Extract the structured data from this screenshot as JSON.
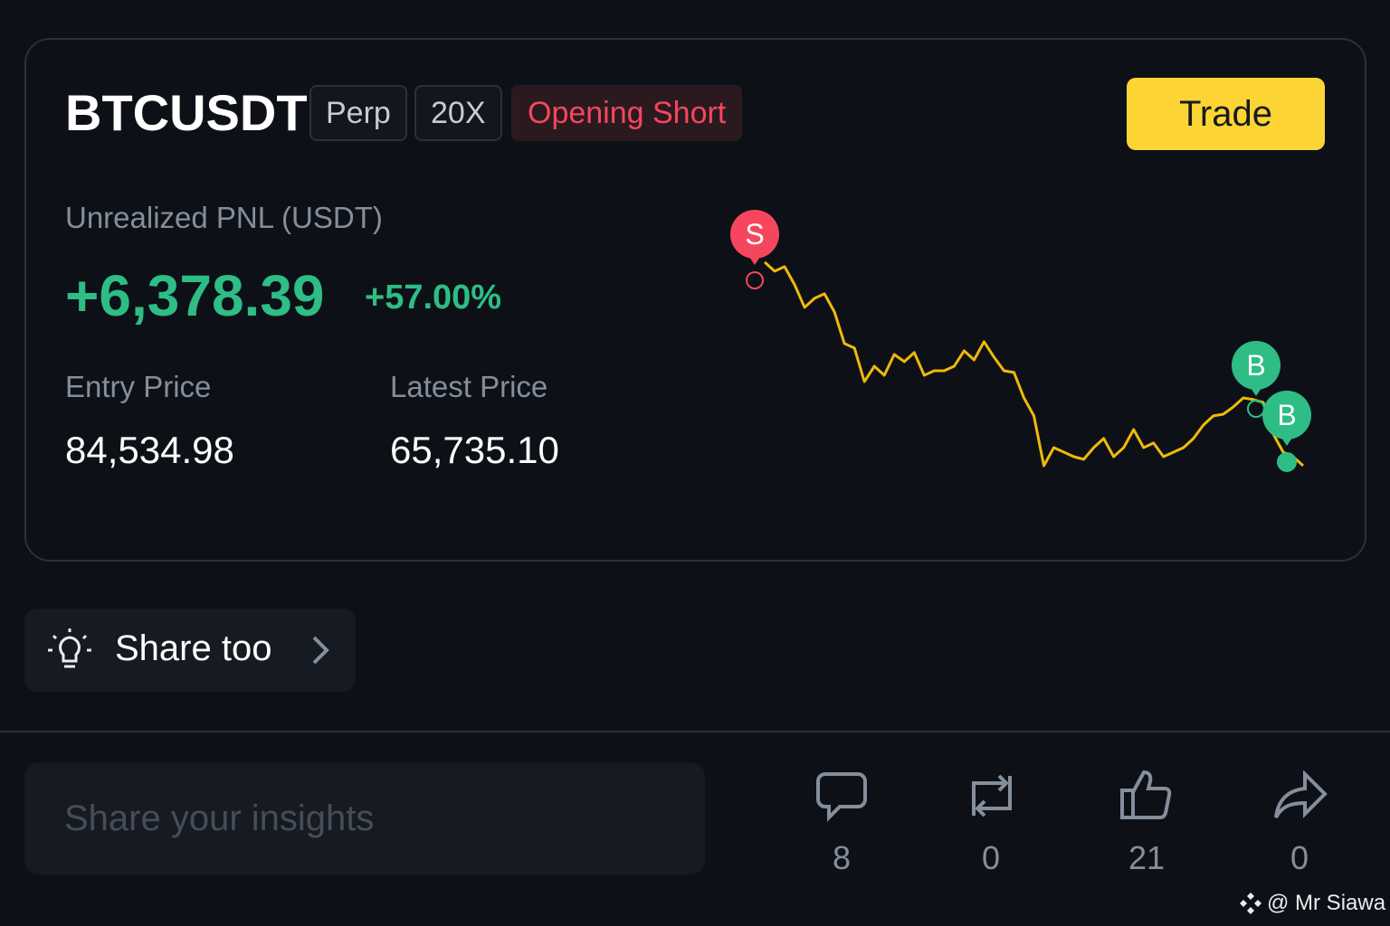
{
  "header": {
    "symbol": "BTCUSDT",
    "tags": [
      "Perp",
      "20X"
    ],
    "side": "Opening Short",
    "trade_button": "Trade"
  },
  "pnl": {
    "label": "Unrealized PNL (USDT)",
    "value": "+6,378.39",
    "percent": "+57.00%"
  },
  "prices": [
    {
      "label": "Entry Price",
      "value": "84,534.98"
    },
    {
      "label": "Latest Price",
      "value": "65,735.10"
    }
  ],
  "chart_data": {
    "type": "line",
    "color": "#f0b90b",
    "ylim": [
      87000,
      65000
    ],
    "values": [
      86370,
      85450,
      85910,
      84080,
      81780,
      82700,
      83160,
      81320,
      78120,
      77660,
      74260,
      75820,
      74900,
      77010,
      76280,
      77200,
      74900,
      75360,
      75360,
      75820,
      77380,
      76460,
      78300,
      76740,
      75360,
      75180,
      72610,
      70780,
      65735,
      67570,
      67110,
      66650,
      66380,
      67570,
      68490,
      66650,
      67570,
      69400,
      67570,
      68030,
      66650,
      67110,
      67570,
      68490,
      69860,
      70780,
      70960,
      71700,
      72610,
      72430,
      72160,
      68950,
      67110,
      66650,
      65735
    ],
    "markers": [
      "S",
      "B",
      "B"
    ]
  },
  "share_tip": "Share too",
  "input_placeholder": "Share your insights",
  "actions": {
    "comments": "8",
    "reposts": "0",
    "likes": "21",
    "shares": "0"
  },
  "watermark": "@ Mr Siawa"
}
